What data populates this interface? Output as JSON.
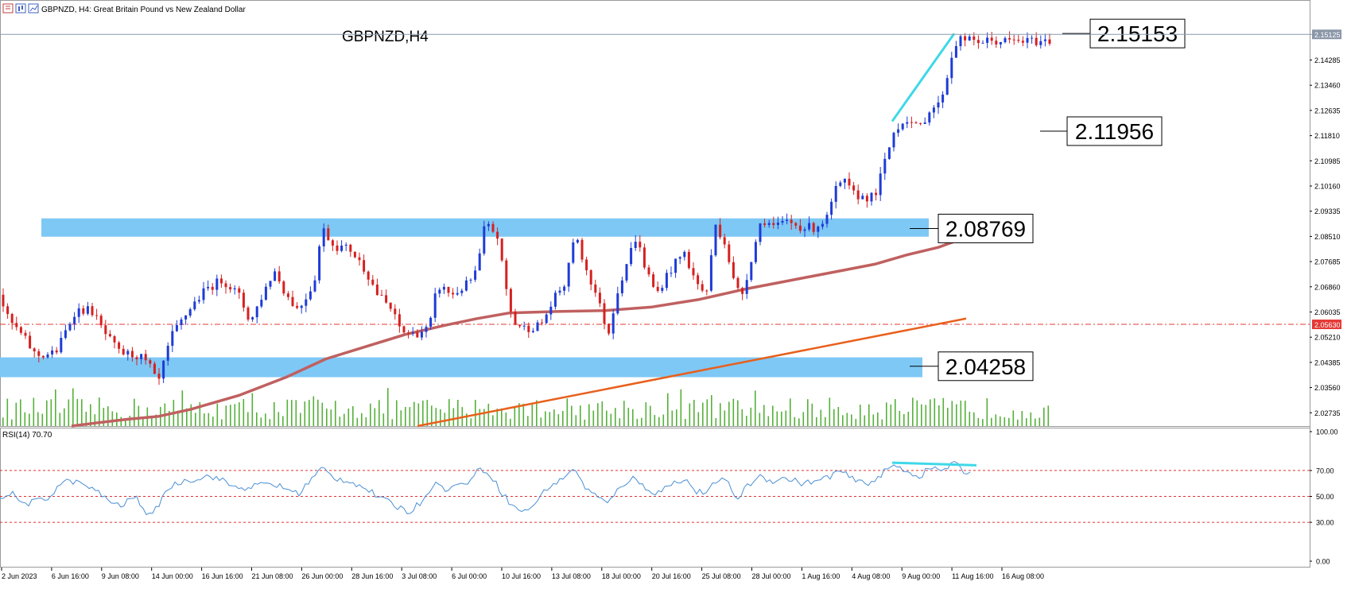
{
  "window": {
    "title": "GBPNZD, H4:  Great Britain Pound vs New Zealand Dollar",
    "watermark": "GBPNZD,H4",
    "icons": [
      "chart-bars-icon",
      "chart-candles-icon",
      "chart-line-icon"
    ]
  },
  "chart_data": [
    {
      "type": "candlestick",
      "symbol": "GBPNZD",
      "timeframe": "H4",
      "ylim": [
        2.023,
        2.1573
      ],
      "price_axis_ticks": [
        "2.14285",
        "2.13460",
        "2.12635",
        "2.11810",
        "2.10985",
        "2.10160",
        "2.09335",
        "2.08510",
        "2.07685",
        "2.06860",
        "2.06035",
        "2.05210",
        "2.04385",
        "2.03560",
        "2.02735"
      ],
      "current_price_label": "2.15125",
      "reference_line": {
        "value": 2.0563,
        "label": "2.05630",
        "color": "#e53935"
      },
      "time_axis_labels": [
        "2 Jun 2023",
        "6 Jun 16:00",
        "9 Jun 08:00",
        "14 Jun 00:00",
        "16 Jun 16:00",
        "21 Jun 08:00",
        "26 Jun 00:00",
        "28 Jun 16:00",
        "3 Jul 08:00",
        "6 Jul 00:00",
        "10 Jul 16:00",
        "13 Jul 08:00",
        "18 Jul 00:00",
        "20 Jul 16:00",
        "25 Jul 08:00",
        "28 Jul 00:00",
        "1 Aug 16:00",
        "4 Aug 08:00",
        "9 Aug 00:00",
        "11 Aug 16:00",
        "16 Aug 08:00"
      ],
      "price_path": [
        [
          0,
          2.066
        ],
        [
          10,
          2.058
        ],
        [
          30,
          2.052
        ],
        [
          45,
          2.046
        ],
        [
          70,
          2.047
        ],
        [
          95,
          2.061
        ],
        [
          115,
          2.061
        ],
        [
          130,
          2.054
        ],
        [
          150,
          2.047
        ],
        [
          175,
          2.046
        ],
        [
          190,
          2.042
        ],
        [
          198,
          2.036
        ],
        [
          215,
          2.052
        ],
        [
          240,
          2.062
        ],
        [
          260,
          2.068
        ],
        [
          280,
          2.071
        ],
        [
          300,
          2.066
        ],
        [
          315,
          2.057
        ],
        [
          330,
          2.066
        ],
        [
          345,
          2.074
        ],
        [
          360,
          2.066
        ],
        [
          375,
          2.061
        ],
        [
          395,
          2.07
        ],
        [
          405,
          2.088
        ],
        [
          420,
          2.082
        ],
        [
          440,
          2.081
        ],
        [
          460,
          2.074
        ],
        [
          475,
          2.066
        ],
        [
          490,
          2.062
        ],
        [
          505,
          2.054
        ],
        [
          520,
          2.053
        ],
        [
          540,
          2.055
        ],
        [
          550,
          2.069
        ],
        [
          570,
          2.066
        ],
        [
          590,
          2.07
        ],
        [
          600,
          2.074
        ],
        [
          610,
          2.089
        ],
        [
          625,
          2.086
        ],
        [
          635,
          2.07
        ],
        [
          645,
          2.057
        ],
        [
          660,
          2.055
        ],
        [
          680,
          2.056
        ],
        [
          700,
          2.066
        ],
        [
          712,
          2.07
        ],
        [
          722,
          2.086
        ],
        [
          735,
          2.076
        ],
        [
          750,
          2.066
        ],
        [
          765,
          2.053
        ],
        [
          775,
          2.066
        ],
        [
          790,
          2.078
        ],
        [
          800,
          2.085
        ],
        [
          810,
          2.076
        ],
        [
          825,
          2.066
        ],
        [
          840,
          2.073
        ],
        [
          860,
          2.08
        ],
        [
          875,
          2.07
        ],
        [
          888,
          2.066
        ],
        [
          900,
          2.089
        ],
        [
          912,
          2.083
        ],
        [
          922,
          2.071
        ],
        [
          932,
          2.065
        ],
        [
          945,
          2.078
        ],
        [
          958,
          2.091
        ],
        [
          975,
          2.088
        ],
        [
          990,
          2.09
        ],
        [
          1010,
          2.088
        ],
        [
          1025,
          2.088
        ],
        [
          1040,
          2.091
        ],
        [
          1050,
          2.1
        ],
        [
          1062,
          2.103
        ],
        [
          1072,
          2.099
        ],
        [
          1085,
          2.098
        ],
        [
          1100,
          2.098
        ],
        [
          1110,
          2.107
        ],
        [
          1125,
          2.12
        ],
        [
          1140,
          2.124
        ],
        [
          1155,
          2.12
        ],
        [
          1170,
          2.127
        ],
        [
          1180,
          2.128
        ],
        [
          1190,
          2.136
        ],
        [
          1200,
          2.148
        ],
        [
          1210,
          2.15
        ],
        [
          1222,
          2.149
        ]
      ],
      "support_resistance_zones": [
        {
          "label": "2.08769",
          "value_low": 2.085,
          "value_high": 2.091,
          "color": "#7ec8f5"
        },
        {
          "label": "2.04258",
          "value_low": 2.039,
          "value_high": 2.0455,
          "color": "#7ec8f5"
        }
      ],
      "price_callouts": [
        {
          "label": "2.15153",
          "value": 2.15153
        },
        {
          "label": "2.11956",
          "value": 2.11956
        },
        {
          "label": "2.08769",
          "value": 2.08769
        },
        {
          "label": "2.04258",
          "value": 2.04258
        }
      ],
      "moving_average": {
        "color": "#c06060",
        "points": [
          [
            90,
            2.023
          ],
          [
            120,
            2.024
          ],
          [
            160,
            2.0252
          ],
          [
            200,
            2.0262
          ],
          [
            240,
            2.0285
          ],
          [
            300,
            2.033
          ],
          [
            360,
            2.039
          ],
          [
            410,
            2.045
          ],
          [
            460,
            2.049
          ],
          [
            510,
            2.053
          ],
          [
            560,
            2.056
          ],
          [
            600,
            2.0582
          ],
          [
            640,
            2.06
          ],
          [
            700,
            2.0605
          ],
          [
            760,
            2.0608
          ],
          [
            820,
            2.062
          ],
          [
            880,
            2.0645
          ],
          [
            940,
            2.068
          ],
          [
            1000,
            2.071
          ],
          [
            1060,
            2.074
          ],
          [
            1100,
            2.076
          ],
          [
            1140,
            2.079
          ],
          [
            1180,
            2.0815
          ],
          [
            1222,
            2.0855
          ]
        ]
      },
      "trendline": {
        "color": "#e8601c",
        "from": [
          525,
          2.023
        ],
        "to": [
          1215,
          2.0582
        ]
      },
      "highlight_line": {
        "color": "#3fd8e8",
        "from": [
          1122,
          2.1228
        ],
        "to": [
          1200,
          2.1515
        ]
      },
      "volume_color": "#55b03a"
    },
    {
      "type": "line",
      "indicator": "RSI",
      "label": "RSI(14) 70.70",
      "ylim": [
        0,
        100
      ],
      "y_ticks": [
        "100.00",
        "70.00",
        "50.00",
        "30.00",
        "0.00"
      ],
      "levels": [
        70,
        50,
        30
      ],
      "line_color": "#4a8fd4",
      "highlight_line": {
        "color": "#3fd8e8",
        "from": [
          1122,
          76
        ],
        "to": [
          1228,
          74
        ]
      },
      "values": [
        [
          0,
          50
        ],
        [
          15,
          52
        ],
        [
          30,
          44
        ],
        [
          45,
          46
        ],
        [
          60,
          48
        ],
        [
          75,
          60
        ],
        [
          90,
          62
        ],
        [
          110,
          58
        ],
        [
          130,
          50
        ],
        [
          150,
          42
        ],
        [
          170,
          50
        ],
        [
          190,
          33
        ],
        [
          210,
          56
        ],
        [
          230,
          62
        ],
        [
          250,
          64
        ],
        [
          265,
          66
        ],
        [
          280,
          62
        ],
        [
          300,
          56
        ],
        [
          320,
          58
        ],
        [
          340,
          60
        ],
        [
          360,
          56
        ],
        [
          375,
          52
        ],
        [
          390,
          62
        ],
        [
          405,
          72
        ],
        [
          420,
          64
        ],
        [
          440,
          62
        ],
        [
          460,
          56
        ],
        [
          480,
          48
        ],
        [
          500,
          42
        ],
        [
          515,
          38
        ],
        [
          530,
          46
        ],
        [
          545,
          60
        ],
        [
          560,
          56
        ],
        [
          575,
          58
        ],
        [
          590,
          62
        ],
        [
          605,
          72
        ],
        [
          618,
          66
        ],
        [
          630,
          54
        ],
        [
          645,
          42
        ],
        [
          660,
          38
        ],
        [
          675,
          46
        ],
        [
          690,
          58
        ],
        [
          705,
          62
        ],
        [
          720,
          72
        ],
        [
          735,
          58
        ],
        [
          750,
          50
        ],
        [
          765,
          44
        ],
        [
          780,
          58
        ],
        [
          795,
          64
        ],
        [
          810,
          58
        ],
        [
          825,
          52
        ],
        [
          840,
          58
        ],
        [
          860,
          64
        ],
        [
          875,
          54
        ],
        [
          890,
          52
        ],
        [
          902,
          64
        ],
        [
          915,
          60
        ],
        [
          928,
          48
        ],
        [
          940,
          58
        ],
        [
          955,
          66
        ],
        [
          970,
          62
        ],
        [
          990,
          64
        ],
        [
          1010,
          60
        ],
        [
          1030,
          62
        ],
        [
          1045,
          66
        ],
        [
          1055,
          70
        ],
        [
          1070,
          64
        ],
        [
          1085,
          60
        ],
        [
          1100,
          62
        ],
        [
          1110,
          68
        ],
        [
          1125,
          74
        ],
        [
          1140,
          70
        ],
        [
          1155,
          65
        ],
        [
          1170,
          72
        ],
        [
          1185,
          70
        ],
        [
          1200,
          76
        ],
        [
          1212,
          68
        ],
        [
          1222,
          71
        ]
      ]
    }
  ]
}
